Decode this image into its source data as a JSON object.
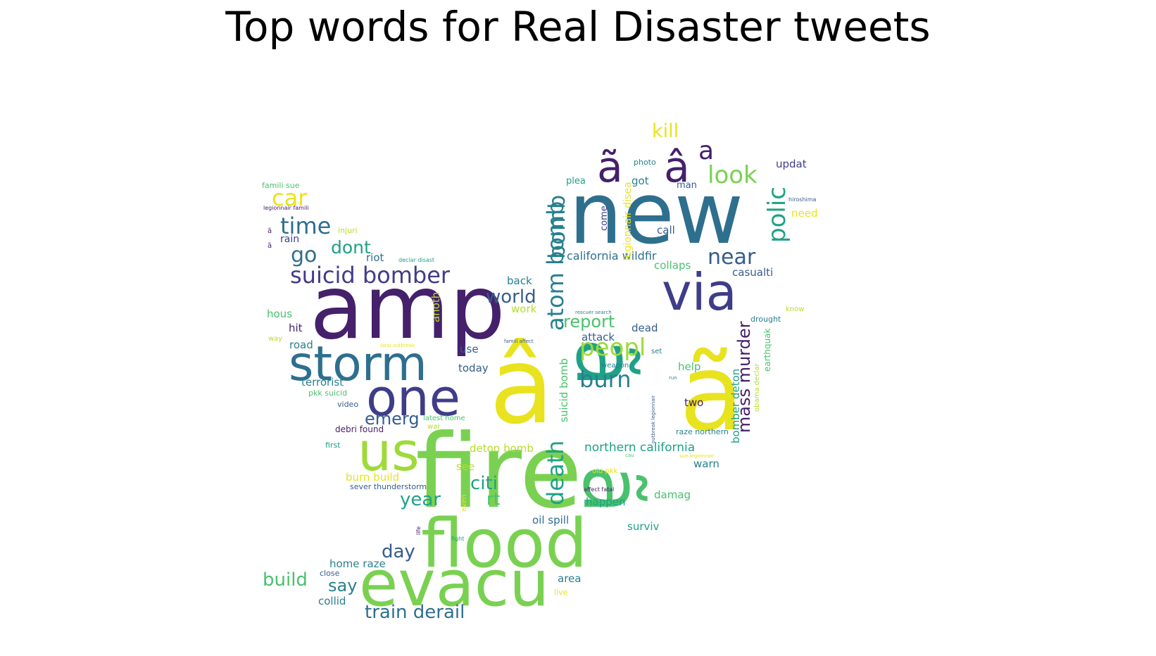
{
  "title": "Top words for Real Disaster tweets",
  "palette": {
    "dark_purple": "#45206b",
    "purple": "#3f3d88",
    "blue": "#365c8d",
    "teal_blue": "#2e6f8e",
    "teal": "#27808e",
    "green_teal": "#1fa187",
    "green": "#4ac16d",
    "lime": "#9fda3a",
    "yellow": "#e8e31e"
  },
  "words": [
    {
      "text": "new",
      "color": "#2e6f8e"
    },
    {
      "text": "amp",
      "color": "#45206b"
    },
    {
      "text": "fire",
      "color": "#7ad151"
    },
    {
      "text": "â",
      "color": "#e8e31e"
    },
    {
      "text": "ã",
      "color": "#e8e31e"
    },
    {
      "text": "ã",
      "color": "#1fa187"
    },
    {
      "text": "ã",
      "color": "#4ac16d"
    },
    {
      "text": "flood",
      "color": "#7ad151"
    },
    {
      "text": "evacu",
      "color": "#7ad151"
    },
    {
      "text": "storm",
      "color": "#2e6f8e"
    },
    {
      "text": "one",
      "color": "#3f3d88"
    },
    {
      "text": "via",
      "color": "#3f3d88"
    },
    {
      "text": "us",
      "color": "#9fda3a"
    },
    {
      "text": "ã",
      "color": "#45206b"
    },
    {
      "text": "â",
      "color": "#45206b"
    },
    {
      "text": "a",
      "color": "#45206b"
    },
    {
      "text": "suicid bomber",
      "color": "#3f3d88"
    },
    {
      "text": "car",
      "color": "#e8e31e"
    },
    {
      "text": "time",
      "color": "#2e6f8e"
    },
    {
      "text": "go",
      "color": "#2e6f8e"
    },
    {
      "text": "dont",
      "color": "#1fa187"
    },
    {
      "text": "look",
      "color": "#7ad151"
    },
    {
      "text": "kill",
      "color": "#e8e31e"
    },
    {
      "text": "polic",
      "color": "#1fa187"
    },
    {
      "text": "near",
      "color": "#365c8d"
    },
    {
      "text": "atom bomb",
      "color": "#27808e"
    },
    {
      "text": "bomb",
      "color": "#27808e"
    },
    {
      "text": "peopl",
      "color": "#9fda3a"
    },
    {
      "text": "burn",
      "color": "#27808e"
    },
    {
      "text": "report",
      "color": "#4ac16d"
    },
    {
      "text": "world",
      "color": "#365c8d"
    },
    {
      "text": "death",
      "color": "#1fa187"
    },
    {
      "text": "emerg",
      "color": "#365c8d"
    },
    {
      "text": "citi",
      "color": "#1fa187"
    },
    {
      "text": "rt",
      "color": "#4ac16d"
    },
    {
      "text": "year",
      "color": "#1fa187"
    },
    {
      "text": "day",
      "color": "#365c8d"
    },
    {
      "text": "build",
      "color": "#4ac16d"
    },
    {
      "text": "say",
      "color": "#27808e"
    },
    {
      "text": "train derail",
      "color": "#2e6f8e"
    },
    {
      "text": "mass murder",
      "color": "#45206b"
    },
    {
      "text": "california wildfir",
      "color": "#2e6f8e"
    },
    {
      "text": "northern california",
      "color": "#1fa187"
    },
    {
      "text": "updat",
      "color": "#3f3d88"
    },
    {
      "text": "casualti",
      "color": "#365c8d"
    },
    {
      "text": "collaps",
      "color": "#4ac16d"
    },
    {
      "text": "call",
      "color": "#365c8d"
    },
    {
      "text": "got",
      "color": "#27808e"
    },
    {
      "text": "man",
      "color": "#365c8d"
    },
    {
      "text": "plea",
      "color": "#1fa187"
    },
    {
      "text": "photo",
      "color": "#27808e"
    },
    {
      "text": "come",
      "color": "#3f3d88"
    },
    {
      "text": "legionnair disea",
      "color": "#e8e31e"
    },
    {
      "text": "need",
      "color": "#e8e31e"
    },
    {
      "text": "hiroshima",
      "color": "#365c8d"
    },
    {
      "text": "riot",
      "color": "#2e6f8e"
    },
    {
      "text": "rain",
      "color": "#3f3d88"
    },
    {
      "text": "injuri",
      "color": "#b5de2b"
    },
    {
      "text": "famili sue",
      "color": "#4ac16d"
    },
    {
      "text": "legionnair famili",
      "color": "#45206b"
    },
    {
      "text": "declar disast",
      "color": "#1fa187"
    },
    {
      "text": "back",
      "color": "#27808e"
    },
    {
      "text": "work",
      "color": "#b5de2b"
    },
    {
      "text": "anoth",
      "color": "#b5de2b"
    },
    {
      "text": "hous",
      "color": "#4ac16d"
    },
    {
      "text": "hit",
      "color": "#45206b"
    },
    {
      "text": "way",
      "color": "#b5de2b"
    },
    {
      "text": "road",
      "color": "#27808e"
    },
    {
      "text": "terrorist",
      "color": "#27808e"
    },
    {
      "text": "pkk suicid",
      "color": "#4ac16d"
    },
    {
      "text": "video",
      "color": "#365c8d"
    },
    {
      "text": "debri found",
      "color": "#45206b"
    },
    {
      "text": "first",
      "color": "#1fa187"
    },
    {
      "text": "latest home",
      "color": "#4ac16d"
    },
    {
      "text": "war",
      "color": "#b5de2b"
    },
    {
      "text": "use",
      "color": "#365c8d"
    },
    {
      "text": "today",
      "color": "#365c8d"
    },
    {
      "text": "attack",
      "color": "#365c8d"
    },
    {
      "text": "dead",
      "color": "#365c8d"
    },
    {
      "text": "set",
      "color": "#27808e"
    },
    {
      "text": "help",
      "color": "#4ac16d"
    },
    {
      "text": "two",
      "color": "#45206b"
    },
    {
      "text": "weapon",
      "color": "#27808e"
    },
    {
      "text": "suicid bomb",
      "color": "#4ac16d"
    },
    {
      "text": "bomber deton",
      "color": "#1fa187"
    },
    {
      "text": "earthquak",
      "color": "#4ac16d"
    },
    {
      "text": "obama declar",
      "color": "#b5de2b"
    },
    {
      "text": "drought",
      "color": "#27808e"
    },
    {
      "text": "know",
      "color": "#b5de2b"
    },
    {
      "text": "raze northern",
      "color": "#27808e"
    },
    {
      "text": "deton bomb",
      "color": "#b5de2b"
    },
    {
      "text": "see",
      "color": "#b5de2b"
    },
    {
      "text": "warn",
      "color": "#27808e"
    },
    {
      "text": "happen",
      "color": "#1fa187"
    },
    {
      "text": "damag",
      "color": "#4ac16d"
    },
    {
      "text": "oil spill",
      "color": "#2e6f8e"
    },
    {
      "text": "surviv",
      "color": "#1fa187"
    },
    {
      "text": "burn build",
      "color": "#e8e31e"
    },
    {
      "text": "sever thunderstorm",
      "color": "#365c8d"
    },
    {
      "text": "home raze",
      "color": "#27808e"
    },
    {
      "text": "close",
      "color": "#365c8d"
    },
    {
      "text": "collid",
      "color": "#27808e"
    },
    {
      "text": "area",
      "color": "#27808e"
    },
    {
      "text": "live",
      "color": "#e8e31e"
    },
    {
      "text": "fight",
      "color": "#1fa187"
    },
    {
      "text": "life",
      "color": "#45206b"
    },
    {
      "text": "even",
      "color": "#e8e31e"
    },
    {
      "text": "affect fatal",
      "color": "#45206b"
    },
    {
      "text": "old pkk",
      "color": "#e8e31e"
    },
    {
      "text": "cau",
      "color": "#4ac16d"
    },
    {
      "text": "sue legionnair",
      "color": "#e8e31e"
    },
    {
      "text": "outbreak legionnair",
      "color": "#365c8d"
    },
    {
      "text": "run",
      "color": "#27808e"
    },
    {
      "text": "famili affect",
      "color": "#365c8d"
    },
    {
      "text": "fatal outbreak",
      "color": "#e8e31e"
    },
    {
      "text": "rescuer search",
      "color": "#27808e"
    },
    {
      "text": "ã",
      "color": "#45206b"
    },
    {
      "text": "ã",
      "color": "#45206b"
    }
  ]
}
